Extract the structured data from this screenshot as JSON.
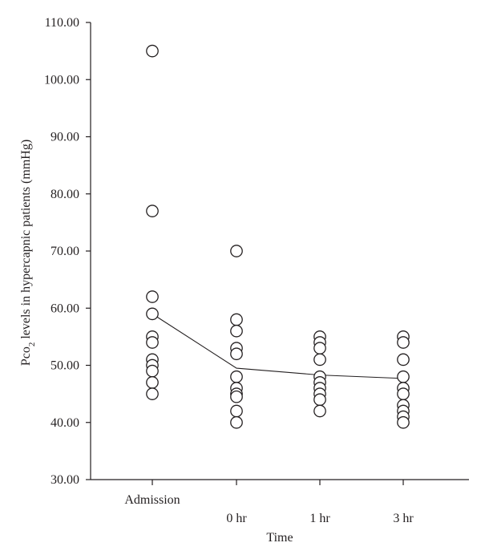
{
  "chart_data": {
    "type": "scatter",
    "title": "",
    "xlabel": "Time",
    "ylabel_main": "Pco",
    "ylabel_sub": "2",
    "ylabel_rest": " levels in hypercapnic patients (mmHg)",
    "ylim": [
      30,
      110
    ],
    "yticks": [
      "30.00",
      "40.00",
      "50.00",
      "60.00",
      "70.00",
      "80.00",
      "90.00",
      "100.00",
      "110.00"
    ],
    "ytick_values": [
      30,
      40,
      50,
      60,
      70,
      80,
      90,
      100,
      110
    ],
    "categories": [
      "Admission",
      "0 hr",
      "1 hr",
      "3 hr"
    ],
    "points": [
      [
        105,
        77,
        62,
        59,
        55,
        54,
        51,
        50,
        49,
        47,
        45
      ],
      [
        70,
        58,
        56,
        53,
        52,
        48,
        46,
        45,
        44.5,
        42,
        40
      ],
      [
        55,
        54,
        53,
        51,
        48,
        47,
        46,
        45,
        44,
        42
      ],
      [
        55,
        54,
        51,
        48,
        46,
        45,
        43,
        42,
        41,
        40
      ]
    ],
    "mean_line": [
      59,
      49.5,
      48.3,
      47.7
    ],
    "grid": false,
    "legend": "none"
  }
}
